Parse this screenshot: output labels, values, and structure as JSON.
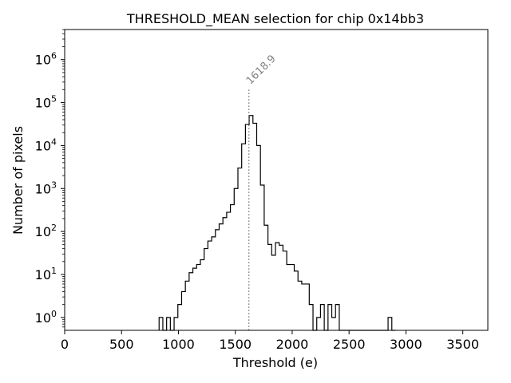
{
  "chart_data": {
    "type": "histogram",
    "title": "THRESHOLD_MEAN selection for chip 0x14bb3",
    "xlabel": "Threshold (e)",
    "ylabel": "Number of pixels",
    "xlim": [
      0,
      3720
    ],
    "ylim_log10": [
      -0.3,
      6.7
    ],
    "x_ticks": [
      0,
      500,
      1000,
      1500,
      2000,
      2500,
      3000,
      3500
    ],
    "x_tick_labels": [
      "0",
      "500",
      "1000",
      "1500",
      "2000",
      "2500",
      "3000",
      "3500"
    ],
    "y_tick_exponents": [
      0,
      1,
      2,
      3,
      4,
      5,
      6
    ],
    "y_tick_base": "10",
    "yscale": "log",
    "bin_width": 33,
    "bins_start": [
      830,
      863,
      896,
      929,
      962,
      995,
      1028,
      1061,
      1094,
      1127,
      1160,
      1193,
      1226,
      1259,
      1292,
      1325,
      1358,
      1391,
      1424,
      1457,
      1490,
      1523,
      1556,
      1589,
      1622,
      1655,
      1688,
      1721,
      1754,
      1787,
      1820,
      1853,
      1886,
      1919,
      1952,
      1985,
      2018,
      2051,
      2084,
      2117,
      2150,
      2183,
      2216,
      2249,
      2282,
      2315,
      2348,
      2381,
      2414,
      2447,
      2480,
      2513,
      2546,
      2579,
      2612,
      2645,
      2678,
      2711,
      2744,
      2777,
      2810,
      2843,
      2876
    ],
    "counts": [
      1,
      0,
      1,
      0,
      1,
      2,
      4,
      7,
      11,
      14,
      17,
      22,
      40,
      60,
      75,
      110,
      150,
      210,
      280,
      420,
      1000,
      3000,
      11000,
      31000,
      50000,
      33000,
      10000,
      1200,
      140,
      50,
      28,
      55,
      48,
      35,
      17,
      17,
      12,
      7,
      6,
      6,
      2,
      0,
      1,
      2,
      0,
      2,
      1,
      2,
      0,
      0,
      0,
      0,
      0,
      0,
      0,
      0,
      0,
      0,
      0,
      0,
      0,
      1,
      0
    ],
    "selection_line": {
      "x": 1618.9,
      "label": "1618.9",
      "style": "dotted",
      "color": "#808080"
    }
  }
}
